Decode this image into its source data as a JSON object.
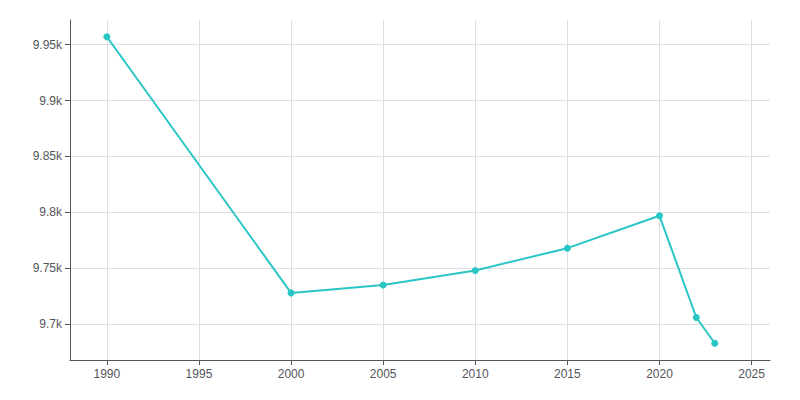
{
  "chart_data": {
    "type": "line",
    "x": [
      1990,
      2000,
      2005,
      2010,
      2015,
      2020,
      2022,
      2023
    ],
    "values": [
      9957,
      9728,
      9735,
      9748,
      9768,
      9797,
      9706,
      9683
    ],
    "color": "#29c5c5",
    "marker": "circle",
    "xlim": [
      1988,
      2026
    ],
    "xticks": [
      1990,
      1995,
      2000,
      2005,
      2010,
      2015,
      2020,
      2025
    ],
    "ylim": [
      9668,
      9972
    ],
    "yticks": [
      {
        "value": 9700,
        "label": "9.7k"
      },
      {
        "value": 9750,
        "label": "9.75k"
      },
      {
        "value": 9800,
        "label": "9.8k"
      },
      {
        "value": 9850,
        "label": "9.85k"
      },
      {
        "value": 9900,
        "label": "9.9k"
      },
      {
        "value": 9950,
        "label": "9.95k"
      }
    ],
    "grid": true
  }
}
